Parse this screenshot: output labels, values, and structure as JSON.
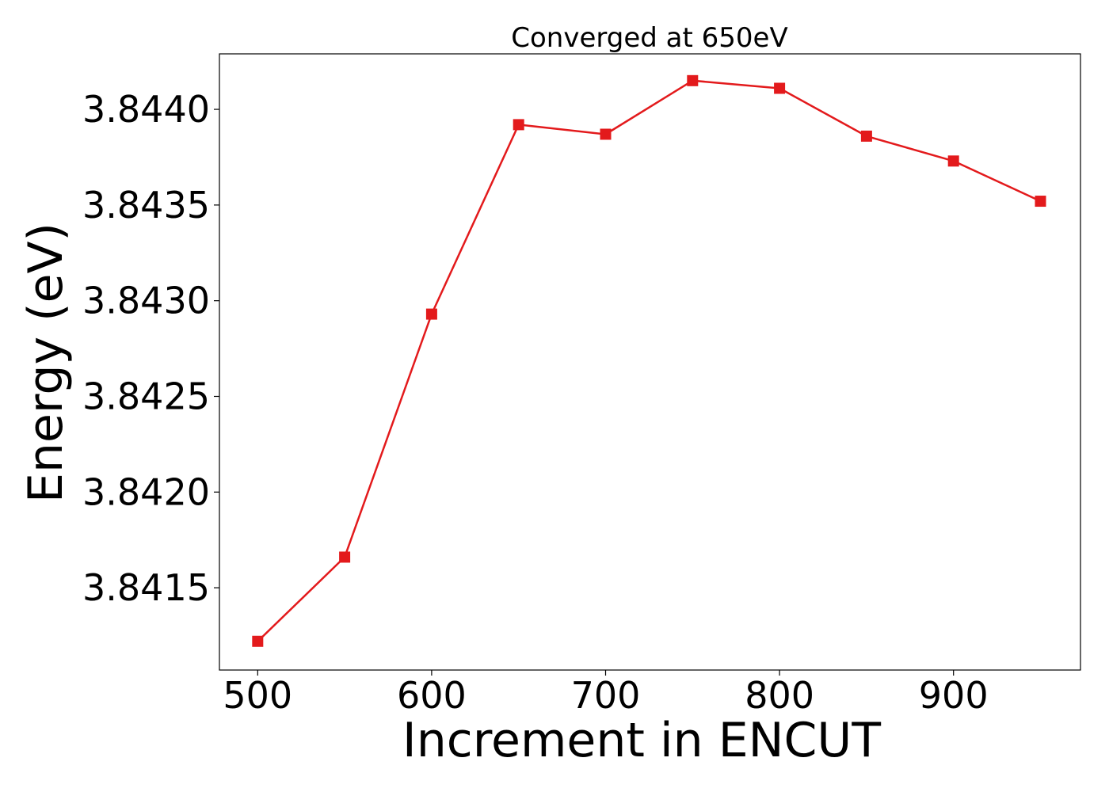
{
  "chart_data": {
    "type": "line",
    "title": "Converged at 650eV",
    "xlabel": "Increment in ENCUT",
    "ylabel": "Energy (eV)",
    "x": [
      500,
      550,
      600,
      650,
      700,
      750,
      800,
      850,
      900,
      950
    ],
    "series": [
      {
        "values": [
          3.84122,
          3.84166,
          3.84293,
          3.84392,
          3.84387,
          3.84415,
          3.84411,
          3.84386,
          3.84373,
          3.84352
        ],
        "color": "#e31a1c",
        "marker": "square"
      }
    ],
    "xlim": [
      478,
      973
    ],
    "ylim": [
      3.84107,
      3.84429
    ],
    "xticks": [
      500,
      600,
      700,
      800,
      900
    ],
    "xtick_labels": [
      "500",
      "600",
      "700",
      "800",
      "900"
    ],
    "yticks": [
      3.8415,
      3.842,
      3.8425,
      3.843,
      3.8435,
      3.844
    ],
    "ytick_labels": [
      "3.8415",
      "3.8420",
      "3.8425",
      "3.8430",
      "3.8435",
      "3.8440"
    ],
    "grid": false,
    "legend": "none"
  }
}
